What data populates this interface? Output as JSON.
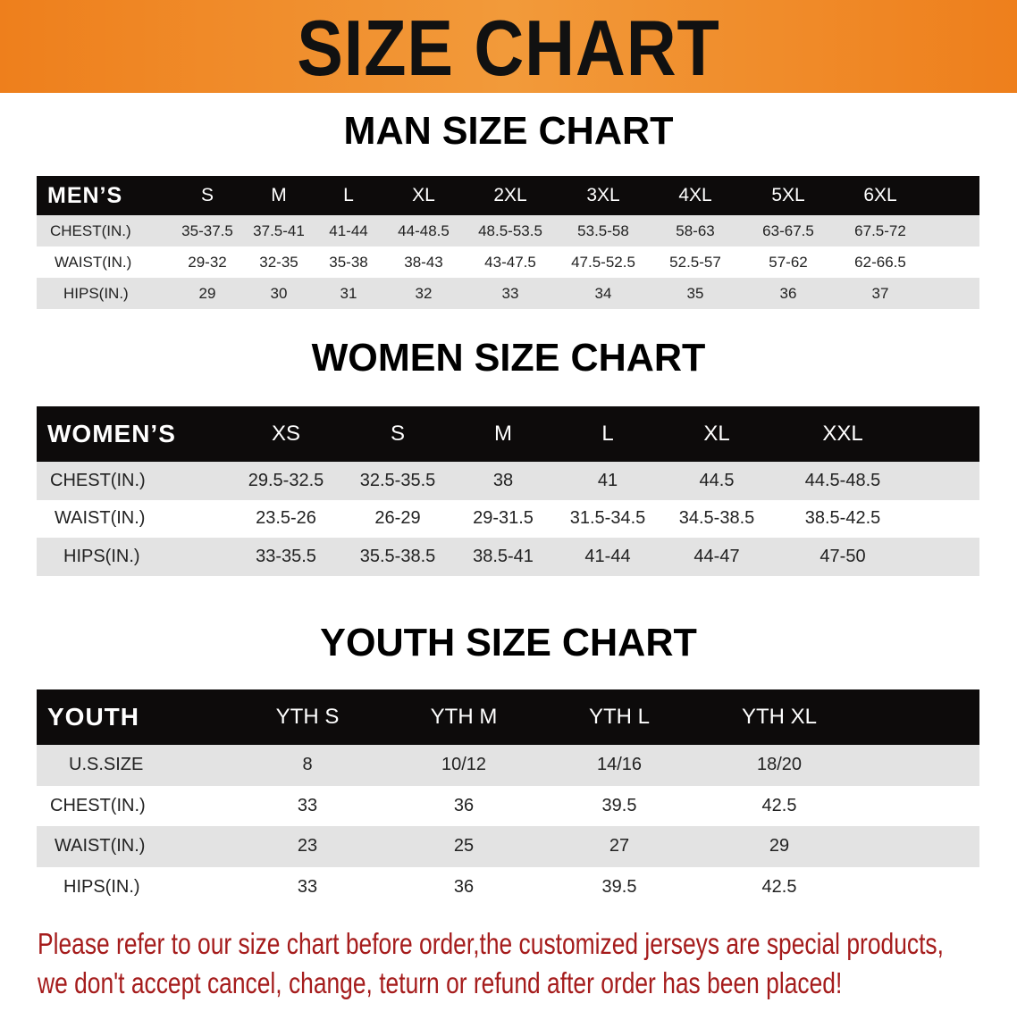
{
  "banner": {
    "title": "SIZE CHART",
    "color": "#ee7f1c"
  },
  "men": {
    "title": "MAN SIZE CHART",
    "header": [
      "MEN’S",
      "S",
      "M",
      "L",
      "XL",
      "2XL",
      "3XL",
      "4XL",
      "5XL",
      "6XL"
    ],
    "rows": [
      [
        "CHEST(IN.)",
        "35-37.5",
        "37.5-41",
        "41-44",
        "44-48.5",
        "48.5-53.5",
        "53.5-58",
        "58-63",
        "63-67.5",
        "67.5-72"
      ],
      [
        "WAIST(IN.)",
        "29-32",
        "32-35",
        "35-38",
        "38-43",
        "43-47.5",
        "47.5-52.5",
        "52.5-57",
        "57-62",
        "62-66.5"
      ],
      [
        "HIPS(IN.)",
        "29",
        "30",
        "31",
        "32",
        "33",
        "34",
        "35",
        "36",
        "37"
      ]
    ]
  },
  "women": {
    "title": "WOMEN SIZE CHART",
    "header": [
      "WOMEN’S",
      "XS",
      "S",
      "M",
      "L",
      "XL",
      "XXL"
    ],
    "rows": [
      [
        "CHEST(IN.)",
        "29.5-32.5",
        "32.5-35.5",
        "38",
        "41",
        "44.5",
        "44.5-48.5"
      ],
      [
        "WAIST(IN.)",
        "23.5-26",
        "26-29",
        "29-31.5",
        "31.5-34.5",
        "34.5-38.5",
        "38.5-42.5"
      ],
      [
        "HIPS(IN.)",
        "33-35.5",
        "35.5-38.5",
        "38.5-41",
        "41-44",
        "44-47",
        "47-50"
      ]
    ]
  },
  "youth": {
    "title": "YOUTH SIZE CHART",
    "header": [
      "YOUTH",
      "YTH S",
      "YTH M",
      "YTH L",
      "YTH XL"
    ],
    "rows": [
      [
        "U.S.SIZE",
        "8",
        "10/12",
        "14/16",
        "18/20"
      ],
      [
        "CHEST(IN.)",
        "33",
        "36",
        "39.5",
        "42.5"
      ],
      [
        "WAIST(IN.)",
        "23",
        "25",
        "27",
        "29"
      ],
      [
        "HIPS(IN.)",
        "33",
        "36",
        "39.5",
        "42.5"
      ]
    ]
  },
  "notice": {
    "line1": "Please refer to our size chart before order,the customized jerseys are special products,",
    "line2": "we don't accept cancel, change, teturn or refund after order has been placed!",
    "color": "#a51c1c"
  }
}
